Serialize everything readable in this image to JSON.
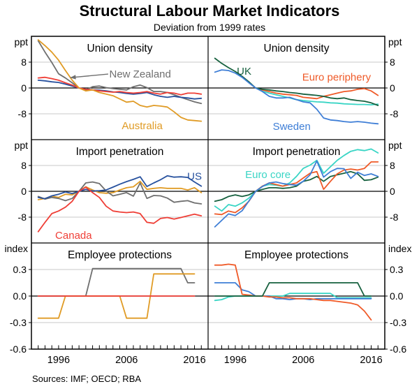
{
  "title": "Structural Labour Market Indicators",
  "subtitle": "Deviation from 1999 rates",
  "sources": "Sources: IMF; OECD; RBA",
  "colors": {
    "australia": "#E09B25",
    "new_zealand": "#6F6F6F",
    "us": "#27519E",
    "canada": "#EF3E36",
    "uk": "#16603E",
    "sweden": "#3E7ED6",
    "euro_periphery": "#EF5A28",
    "euro_core": "#39D5C5",
    "gridline": "#C9C9C9",
    "axis": "#000000"
  },
  "chart_data": {
    "type": "line",
    "title": "Structural Labour Market Indicators",
    "subtitle": "Deviation from 1999 rates",
    "x_domain": [
      1992,
      2018
    ],
    "x_axis": {
      "labels": [
        "1996",
        "2006",
        "2016"
      ],
      "label_years": [
        1996,
        2006,
        2016
      ],
      "minor_tick_start": 1993,
      "minor_tick_end": 2017
    },
    "rows": [
      {
        "unit": "ppt",
        "ylim": [
          -16,
          16
        ],
        "gridlines": [
          8,
          -8
        ],
        "zero_line": 0,
        "tick_values": [
          8,
          0,
          -8
        ],
        "tick_labels": [
          "8",
          "0",
          "-8"
        ]
      },
      {
        "unit": "ppt",
        "ylim": [
          -16,
          16
        ],
        "gridlines": [
          8,
          -8
        ],
        "zero_line": 0,
        "tick_values": [
          8,
          0,
          -8
        ],
        "tick_labels": [
          "8",
          "0",
          "-8"
        ]
      },
      {
        "unit": "index",
        "ylim": [
          -0.6,
          0.6
        ],
        "gridlines": [
          0.3,
          -0.3
        ],
        "zero_line": 0,
        "tick_values": [
          0.3,
          0,
          -0.3,
          -0.6
        ],
        "tick_labels": [
          "0.3",
          "0.0",
          "-0.3",
          "-0.6"
        ]
      }
    ],
    "panels": [
      {
        "id": "union-density-left",
        "row": 0,
        "col": 0,
        "title": "Union density",
        "series": [
          {
            "name": "New Zealand",
            "color": "new_zealand",
            "start_year": 1993,
            "values": [
              14.6,
              11.1,
              7.9,
              4.4,
              3.1,
              1.6,
              0,
              -0.6,
              0.4,
              0.6,
              0.1,
              -0.2,
              -0.4,
              -0.6,
              0.4,
              0.9,
              0.1,
              -1.1,
              -1.1,
              -1.4,
              -2.1,
              -2.9,
              -3.6,
              -4.3,
              -4.8
            ]
          },
          {
            "name": "US",
            "color": "us",
            "start_year": 1993,
            "values": [
              2.4,
              2.2,
              1.9,
              1.7,
              1.2,
              0.6,
              0,
              -0.4,
              -0.6,
              -0.7,
              -0.9,
              -1.2,
              -1.4,
              -1.7,
              -1.9,
              -1.7,
              -1.4,
              -2.1,
              -2.6,
              -2.9,
              -2.6,
              -2.9,
              -3.1,
              -3.4,
              -3.2
            ]
          },
          {
            "name": "Canada",
            "color": "canada",
            "start_year": 1993,
            "values": [
              3.1,
              3.3,
              2.9,
              2.4,
              1.6,
              0.9,
              0,
              -0.4,
              -0.6,
              -0.9,
              -1.1,
              -1.3,
              -1.1,
              -1.4,
              -1.6,
              -1.4,
              -1.1,
              -1.6,
              -1.9,
              -1.4,
              -1.6,
              -2.1,
              -1.6,
              -1.6,
              -1.9
            ]
          },
          {
            "name": "Australia",
            "color": "australia",
            "start_year": 1993,
            "values": [
              14.9,
              13.1,
              11.1,
              8.6,
              5.4,
              2.4,
              0,
              -0.9,
              -0.6,
              -1.4,
              -1.9,
              -2.4,
              -3.4,
              -4.4,
              -4.1,
              -5.4,
              -5.9,
              -5.4,
              -5.6,
              -5.9,
              -7.4,
              -9.1,
              -9.9,
              -10.1,
              -10.3
            ]
          }
        ],
        "labels": [
          {
            "text": "New Zealand",
            "color": "new_zealand",
            "x": 2008.0,
            "y": 4.3,
            "anchor": "middle"
          },
          {
            "text": "Australia",
            "color": "australia",
            "x": 2008.3,
            "y": -11.7,
            "anchor": "middle"
          }
        ],
        "arrow": {
          "color": "new_zealand",
          "x1": 2003.3,
          "y1": 4.3,
          "x2": 1997.7,
          "y2": 3.2
        }
      },
      {
        "id": "union-density-right",
        "row": 0,
        "col": 1,
        "title": "Union density",
        "series": [
          {
            "name": "Euro core",
            "color": "euro_core",
            "start_year": 1999,
            "values": [
              0,
              -1.0,
              -1.6,
              -2.1,
              -2.6,
              -3.1,
              -3.6,
              -3.9,
              -4.1,
              -4.3,
              -4.4,
              -4.6,
              -4.7,
              -4.9,
              -5.0,
              -5.1,
              -5.1,
              -5.2,
              -5.0
            ]
          },
          {
            "name": "Euro periphery",
            "color": "euro_periphery",
            "start_year": 1999,
            "values": [
              0,
              -0.6,
              -1.1,
              -1.6,
              -1.9,
              -2.1,
              -2.3,
              -2.9,
              -3.1,
              -3.3,
              -2.6,
              -2.1,
              -1.6,
              -1.1,
              -0.9,
              -0.4,
              -0.2,
              -0.9,
              -2.3
            ]
          },
          {
            "name": "UK",
            "color": "uk",
            "start_year": 1993,
            "values": [
              9.2,
              7.6,
              6.3,
              5.1,
              3.6,
              1.9,
              0,
              -0.4,
              -0.6,
              -0.9,
              -1.1,
              -1.4,
              -1.6,
              -1.9,
              -2.1,
              -2.3,
              -2.6,
              -3.1,
              -3.3,
              -3.1,
              -3.6,
              -3.9,
              -4.1,
              -4.6,
              -5.4
            ]
          },
          {
            "name": "Sweden",
            "color": "sweden",
            "start_year": 1993,
            "values": [
              4.9,
              5.6,
              5.4,
              4.6,
              3.3,
              1.6,
              0,
              -1.1,
              -2.6,
              -3.1,
              -3.1,
              -2.9,
              -3.6,
              -4.3,
              -4.6,
              -6.6,
              -9.3,
              -9.9,
              -10.1,
              -10.4,
              -10.6,
              -10.4,
              -10.6,
              -10.9,
              -11.1
            ]
          }
        ],
        "labels": [
          {
            "text": "UK",
            "color": "uk",
            "x": 1997.3,
            "y": 5.2,
            "anchor": "middle"
          },
          {
            "text": "Euro periphery",
            "color": "euro_periphery",
            "x": 2010.9,
            "y": 3.4,
            "anchor": "middle"
          },
          {
            "text": "Sweden",
            "color": "sweden",
            "x": 2004.3,
            "y": -11.9,
            "anchor": "middle"
          }
        ]
      },
      {
        "id": "import-penetration-left",
        "row": 1,
        "col": 0,
        "title": "Import penetration",
        "series": [
          {
            "name": "Australia",
            "color": "australia",
            "start_year": 1993,
            "values": [
              -2.6,
              -2.2,
              -1.5,
              -1.9,
              -0.9,
              -1.1,
              0,
              1.4,
              0.4,
              -0.4,
              -0.6,
              -0.4,
              0.4,
              1.1,
              1.4,
              3.1,
              0.6,
              0.9,
              1.1,
              0.9,
              0.9,
              0.9,
              0.4,
              1.1,
              -0.4
            ]
          },
          {
            "name": "New Zealand",
            "color": "new_zealand",
            "start_year": 1993,
            "values": [
              -1.6,
              -2.4,
              -1.9,
              -2.2,
              -2.9,
              -2.2,
              0,
              2.6,
              2.9,
              2.4,
              0.1,
              -1.4,
              -0.9,
              -0.4,
              -1.5,
              2.6,
              -2.2,
              -1.3,
              -1.4,
              -2.1,
              -3.4,
              -3.1,
              -2.9,
              -3.6,
              -3.9
            ]
          },
          {
            "name": "US",
            "color": "us",
            "start_year": 1993,
            "values": [
              -1.9,
              -2.3,
              -1.4,
              -0.9,
              -0.2,
              -0.7,
              0,
              0.6,
              0.1,
              0.2,
              0.4,
              1.3,
              2.2,
              3.0,
              3.7,
              4.5,
              1.5,
              2.6,
              3.6,
              4.8,
              4.4,
              4.5,
              4.3,
              2.9,
              1.6
            ]
          },
          {
            "name": "Canada",
            "color": "canada",
            "start_year": 1993,
            "values": [
              -12.5,
              -9.6,
              -6.9,
              -6.1,
              -4.9,
              -3.1,
              0,
              1.3,
              -0.4,
              -1.9,
              -4.6,
              -6.1,
              -6.4,
              -6.6,
              -6.4,
              -6.9,
              -9.6,
              -9.9,
              -8.4,
              -8.1,
              -8.6,
              -8.1,
              -7.6,
              -7.1,
              -7.6
            ]
          }
        ],
        "labels": [
          {
            "text": "US",
            "color": "us",
            "x": 2016.0,
            "y": 4.6,
            "anchor": "middle"
          },
          {
            "text": "Canada",
            "color": "canada",
            "x": 1998.2,
            "y": -13.6,
            "anchor": "middle"
          }
        ]
      },
      {
        "id": "import-penetration-right",
        "row": 1,
        "col": 1,
        "title": "Import penetration",
        "series": [
          {
            "name": "Euro core",
            "color": "euro_core",
            "start_year": 1993,
            "values": [
              -4.6,
              -6.1,
              -4.1,
              -4.6,
              -3.6,
              -2.1,
              0,
              1.6,
              2.1,
              1.9,
              1.6,
              2.6,
              4.6,
              7.1,
              8.1,
              9.6,
              5.6,
              7.6,
              9.6,
              11.1,
              12.4,
              12.9,
              12.6,
              13.1,
              11.9
            ]
          },
          {
            "name": "UK",
            "color": "uk",
            "start_year": 1993,
            "values": [
              -3.1,
              -2.6,
              -1.6,
              -1.1,
              -1.6,
              -1.1,
              0,
              0.6,
              1.1,
              1.1,
              0.9,
              1.1,
              1.6,
              3.1,
              3.6,
              4.6,
              3.1,
              4.6,
              5.1,
              5.6,
              6.1,
              5.4,
              3.4,
              3.6,
              4.4
            ]
          },
          {
            "name": "Euro periphery",
            "color": "euro_periphery",
            "start_year": 1993,
            "values": [
              -7.0,
              -7.2,
              -6.1,
              -6.6,
              -5.1,
              -3.1,
              0,
              1.6,
              2.6,
              2.1,
              1.6,
              2.1,
              2.6,
              4.1,
              5.6,
              6.1,
              0.6,
              3.1,
              5.4,
              6.6,
              6.9,
              6.6,
              7.1,
              9.1,
              9.1
            ]
          },
          {
            "name": "Sweden",
            "color": "sweden",
            "start_year": 1993,
            "values": [
              -11.0,
              -9.0,
              -7.0,
              -7.5,
              -6.0,
              -3.0,
              0,
              1.5,
              2.6,
              2.9,
              2.4,
              2.1,
              1.9,
              3.1,
              5.1,
              9.4,
              4.4,
              6.1,
              7.1,
              7.0,
              4.0,
              5.9,
              4.9,
              5.4,
              4.6
            ]
          }
        ],
        "labels": [
          {
            "text": "Euro core",
            "color": "euro_core",
            "x": 2000.8,
            "y": 5.2,
            "anchor": "middle"
          }
        ]
      },
      {
        "id": "employee-protections-left",
        "row": 2,
        "col": 0,
        "title": "Employee protections",
        "series": [
          {
            "name": "New Zealand",
            "color": "new_zealand",
            "start_year": 1993,
            "values": [
              0,
              0,
              0,
              0,
              0,
              0,
              0,
              0,
              0.31,
              0.31,
              0.31,
              0.31,
              0.31,
              0.31,
              0.31,
              0.31,
              0.31,
              0.31,
              0.31,
              0.31,
              0.31,
              0.31,
              0.15,
              0.15
            ]
          },
          {
            "name": "Australia",
            "color": "australia",
            "start_year": 1993,
            "values": [
              -0.25,
              -0.25,
              -0.25,
              -0.25,
              0,
              0,
              0,
              0,
              0,
              0,
              0,
              0,
              0,
              -0.25,
              -0.25,
              -0.25,
              -0.25,
              0.25,
              0.25,
              0.25,
              0.25,
              0.25,
              0.25,
              0.25
            ]
          },
          {
            "name": "Canada",
            "color": "canada",
            "start_year": 1993,
            "values": [
              0,
              0,
              0,
              0,
              0,
              0,
              0,
              0,
              0,
              0,
              0,
              0,
              0,
              0,
              0,
              0,
              0,
              0,
              0,
              0,
              0,
              0,
              0,
              0
            ]
          }
        ],
        "labels": []
      },
      {
        "id": "employee-protections-right",
        "row": 2,
        "col": 1,
        "title": "Employee protections",
        "series": [
          {
            "name": "Euro core",
            "color": "euro_core",
            "start_year": 1993,
            "values": [
              -0.05,
              -0.04,
              -0.01,
              0,
              0,
              0,
              0,
              0,
              0,
              0,
              0,
              0.03,
              0.03,
              0.03,
              0.03,
              0.03,
              0.03,
              0.03,
              -0.02,
              -0.02,
              -0.02,
              -0.02,
              -0.02,
              -0.02
            ]
          },
          {
            "name": "Sweden",
            "color": "sweden",
            "start_year": 1993,
            "values": [
              0.15,
              0.15,
              0.15,
              0.15,
              0.07,
              0.05,
              0,
              0,
              0,
              -0.03,
              -0.03,
              -0.04,
              -0.03,
              -0.03,
              -0.04,
              -0.03,
              -0.03,
              -0.03,
              -0.03,
              -0.03,
              -0.03,
              -0.03,
              -0.03,
              -0.03
            ]
          },
          {
            "name": "Euro periphery",
            "color": "euro_periphery",
            "start_year": 1993,
            "values": [
              0.35,
              0.35,
              0.36,
              0.35,
              0.02,
              0.01,
              0,
              0,
              -0.01,
              -0.01,
              -0.02,
              -0.02,
              -0.03,
              -0.03,
              -0.03,
              -0.04,
              -0.05,
              -0.05,
              -0.06,
              -0.07,
              -0.08,
              -0.1,
              -0.17,
              -0.27
            ]
          },
          {
            "name": "UK",
            "color": "uk",
            "start_year": 1993,
            "values": [
              0,
              0,
              0,
              0,
              0,
              0,
              0,
              0,
              0.15,
              0.15,
              0.15,
              0.15,
              0.15,
              0.15,
              0.15,
              0.15,
              0.15,
              0.15,
              0.15,
              0.15,
              0.15,
              0.15,
              0,
              0
            ]
          }
        ],
        "labels": []
      }
    ]
  }
}
